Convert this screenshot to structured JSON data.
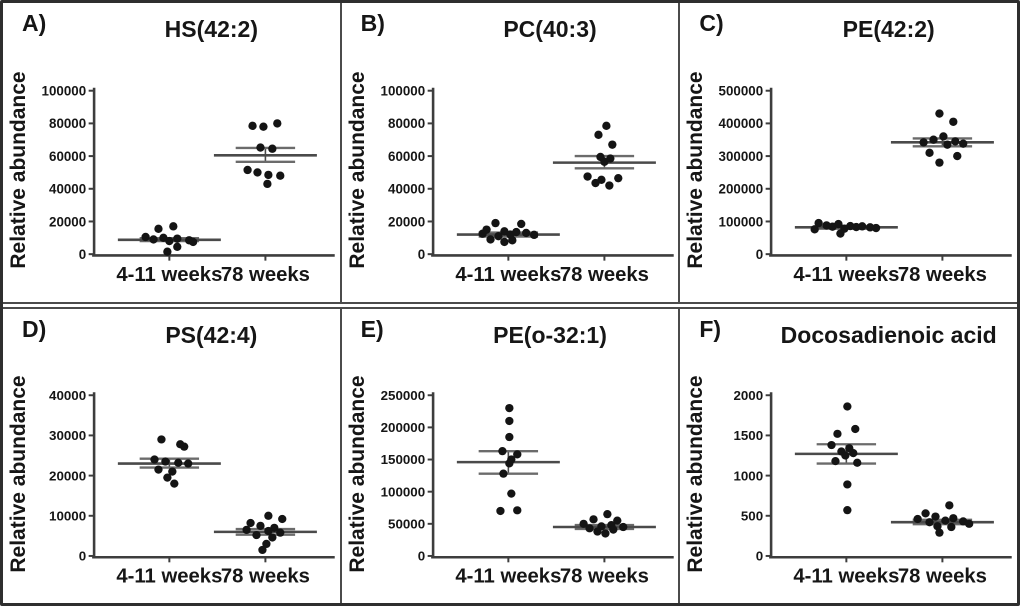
{
  "figure": {
    "ylabel_shared": "Relative abundance",
    "categories_shared": [
      "4-11 weeks",
      "78 weeks"
    ]
  },
  "colors": {
    "text": "#161616",
    "axis": "#3d3d3d",
    "dot": "#141414",
    "mean_line": "#4a4a4a",
    "error_cap": "#6b6b6b",
    "divider": "#4b4b4b",
    "background": "#ffffff",
    "outer_border": "#2e2e2e"
  },
  "chart_data": [
    {
      "type": "scatter",
      "panel_label": "A)",
      "title": "HS(42:2)",
      "ylabel": "Relative abundance",
      "ylim": [
        0,
        100000
      ],
      "yticks": [
        0,
        20000,
        40000,
        60000,
        80000,
        100000
      ],
      "categories": [
        "4-11 weeks",
        "78 weeks"
      ],
      "series": [
        {
          "name": "4-11 weeks",
          "values": [
            17000,
            15500,
            10500,
            10000,
            9500,
            9000,
            8500,
            8000,
            7500,
            4500,
            1500
          ],
          "jitter": [
            4,
            -11,
            -24,
            -6,
            8,
            -16,
            20,
            0,
            24,
            8,
            -2
          ],
          "mean": 8800,
          "err_low": 8000,
          "err_high": 9800
        },
        {
          "name": "78 weeks",
          "values": [
            80000,
            78500,
            78000,
            65200,
            64500,
            51500,
            50000,
            48500,
            48000,
            43000
          ],
          "jitter": [
            12,
            -13,
            -2,
            -5,
            7,
            -18,
            -8,
            3,
            15,
            2
          ],
          "mean": 60500,
          "err_low": 56500,
          "err_high": 65000
        }
      ]
    },
    {
      "type": "scatter",
      "panel_label": "B)",
      "title": "PC(40:3)",
      "ylabel": "Relative abundance",
      "ylim": [
        0,
        100000
      ],
      "yticks": [
        0,
        20000,
        40000,
        60000,
        80000,
        100000
      ],
      "categories": [
        "4-11 weeks",
        "78 weeks"
      ],
      "series": [
        {
          "name": "4-11 weeks",
          "values": [
            19000,
            18500,
            15000,
            14000,
            13500,
            13000,
            12500,
            12000,
            11800,
            11000,
            9000,
            8500,
            7500
          ],
          "jitter": [
            -13,
            13,
            -22,
            -4,
            8,
            18,
            -26,
            2,
            26,
            -10,
            -18,
            4,
            -4
          ],
          "mean": 12000,
          "err_low": 10800,
          "err_high": 13200
        },
        {
          "name": "78 weeks",
          "values": [
            78500,
            73000,
            67000,
            59500,
            58500,
            56500,
            47500,
            46500,
            45500,
            43500,
            42000
          ],
          "jitter": [
            2,
            -6,
            8,
            -4,
            6,
            0,
            -17,
            14,
            -3,
            -9,
            5
          ],
          "mean": 56000,
          "err_low": 52500,
          "err_high": 60000
        }
      ]
    },
    {
      "type": "scatter",
      "panel_label": "C)",
      "title": "PE(42:2)",
      "ylabel": "Relative abundance",
      "ylim": [
        0,
        500000
      ],
      "yticks": [
        0,
        100000,
        200000,
        300000,
        400000,
        500000
      ],
      "categories": [
        "4-11 weeks",
        "78 weeks"
      ],
      "series": [
        {
          "name": "4-11 weeks",
          "values": [
            95000,
            92000,
            88000,
            86000,
            85000,
            84000,
            83000,
            82000,
            80000,
            78000,
            76000,
            63000
          ],
          "jitter": [
            -28,
            -8,
            -20,
            4,
            16,
            -14,
            10,
            24,
            30,
            -2,
            -32,
            -6
          ],
          "mean": 82000,
          "err_low": 78000,
          "err_high": 86000
        },
        {
          "name": "78 weeks",
          "values": [
            430000,
            405000,
            360000,
            350000,
            345000,
            342000,
            338000,
            335000,
            310000,
            300000,
            280000
          ],
          "jitter": [
            -3,
            11,
            1,
            -9,
            13,
            -19,
            21,
            5,
            -13,
            15,
            -3
          ],
          "mean": 342000,
          "err_low": 330000,
          "err_high": 354000
        }
      ]
    },
    {
      "type": "scatter",
      "panel_label": "D)",
      "title": "PS(42:4)",
      "ylabel": "Relative abundance",
      "ylim": [
        0,
        40000
      ],
      "yticks": [
        0,
        10000,
        20000,
        30000,
        40000
      ],
      "categories": [
        "4-11 weeks",
        "78 weeks"
      ],
      "series": [
        {
          "name": "4-11 weeks",
          "values": [
            29000,
            27800,
            27200,
            24000,
            23500,
            23200,
            23000,
            21500,
            21000,
            19500,
            18000
          ],
          "jitter": [
            -8,
            11,
            15,
            -15,
            -4,
            9,
            19,
            -11,
            3,
            -2,
            5
          ],
          "mean": 23000,
          "err_low": 22000,
          "err_high": 24200
        },
        {
          "name": "78 weeks",
          "values": [
            10000,
            9200,
            8200,
            7500,
            7000,
            6500,
            6200,
            5800,
            5200,
            4600,
            3000,
            1500
          ],
          "jitter": [
            3,
            17,
            -15,
            -5,
            9,
            -19,
            3,
            15,
            -9,
            7,
            1,
            -3
          ],
          "mean": 6000,
          "err_low": 5300,
          "err_high": 6700
        }
      ]
    },
    {
      "type": "scatter",
      "panel_label": "E)",
      "title": "PE(o-32:1)",
      "ylabel": "Relative abundance",
      "ylim": [
        0,
        250000
      ],
      "yticks": [
        0,
        50000,
        100000,
        150000,
        200000,
        250000
      ],
      "categories": [
        "4-11 weeks",
        "78 weeks"
      ],
      "series": [
        {
          "name": "4-11 weeks",
          "values": [
            230000,
            210000,
            185000,
            163000,
            158000,
            150000,
            144000,
            128000,
            97000,
            71000,
            70000
          ],
          "jitter": [
            1,
            1,
            1,
            -6,
            9,
            3,
            1,
            -5,
            3,
            9,
            -8
          ],
          "mean": 146000,
          "err_low": 128000,
          "err_high": 163000
        },
        {
          "name": "78 weeks",
          "values": [
            65000,
            57000,
            55000,
            50000,
            48000,
            46000,
            45000,
            43000,
            41000,
            38000,
            35000
          ],
          "jitter": [
            3,
            -11,
            13,
            -21,
            7,
            -3,
            19,
            -15,
            9,
            -7,
            1
          ],
          "mean": 45000,
          "err_low": 42000,
          "err_high": 48000
        }
      ]
    },
    {
      "type": "scatter",
      "panel_label": "F)",
      "title": "Docosadienoic acid",
      "ylabel": "Relative abundance",
      "ylim": [
        0,
        2000
      ],
      "yticks": [
        0,
        500,
        1000,
        1500,
        2000
      ],
      "categories": [
        "4-11 weeks",
        "78 weeks"
      ],
      "series": [
        {
          "name": "4-11 weeks",
          "values": [
            1860,
            1580,
            1520,
            1380,
            1340,
            1300,
            1280,
            1250,
            1180,
            1160,
            890,
            570
          ],
          "jitter": [
            1,
            9,
            -9,
            -15,
            3,
            -5,
            7,
            -1,
            -11,
            11,
            1,
            1
          ],
          "mean": 1270,
          "err_low": 1150,
          "err_high": 1390
        },
        {
          "name": "78 weeks",
          "values": [
            630,
            530,
            490,
            470,
            460,
            440,
            430,
            420,
            400,
            370,
            360,
            290
          ],
          "jitter": [
            7,
            -17,
            -7,
            11,
            -25,
            3,
            21,
            -13,
            27,
            -5,
            9,
            -3
          ],
          "mean": 420,
          "err_low": 395,
          "err_high": 450
        }
      ]
    }
  ]
}
